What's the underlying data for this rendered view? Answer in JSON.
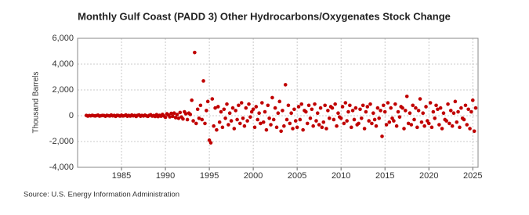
{
  "chart_data": {
    "type": "scatter",
    "title": "Monthly Gulf Coast (PADD 3) Other Hydrocarbons/Oxygenates Stock Change",
    "y_label": "Thousand Barrels",
    "source": "Source: U.S. Energy Information Administration",
    "grid": true,
    "xlim": [
      1980,
      2025.6
    ],
    "xticks": [
      1985,
      1990,
      1995,
      2000,
      2005,
      2010,
      2015,
      2020,
      2025
    ],
    "ylim": [
      -4000,
      6000
    ],
    "yticks": [
      {
        "value": -4000,
        "label": "-4,000"
      },
      {
        "value": -2000,
        "label": "-2,000"
      },
      0,
      {
        "value": 2000,
        "label": "2,000"
      },
      {
        "value": 4000,
        "label": "4,000"
      },
      {
        "value": 6000,
        "label": "6,000"
      }
    ],
    "x": [
      1981,
      1981.17,
      1981.33,
      1981.5,
      1981.67,
      1981.83,
      1982,
      1982.17,
      1982.33,
      1982.5,
      1982.67,
      1982.83,
      1983,
      1983.17,
      1983.33,
      1983.5,
      1983.67,
      1983.83,
      1984,
      1984.17,
      1984.33,
      1984.5,
      1984.67,
      1984.83,
      1985,
      1985.17,
      1985.33,
      1985.5,
      1985.67,
      1985.83,
      1986,
      1986.17,
      1986.33,
      1986.5,
      1986.67,
      1986.83,
      1987,
      1987.17,
      1987.33,
      1987.5,
      1987.67,
      1987.83,
      1988,
      1988.17,
      1988.33,
      1988.5,
      1988.67,
      1988.83,
      1989,
      1989.17,
      1989.33,
      1989.5,
      1989.67,
      1989.83,
      1990,
      1990.17,
      1990.33,
      1990.5,
      1990.67,
      1990.83,
      1991,
      1991.17,
      1991.33,
      1991.5,
      1991.67,
      1991.83,
      1992,
      1992.17,
      1992.33,
      1992.5,
      1992.67,
      1992.83,
      1993,
      1993.17,
      1993.33,
      1993.5,
      1993.67,
      1993.83,
      1994,
      1994.17,
      1994.33,
      1994.5,
      1994.67,
      1994.83,
      1995,
      1995.17,
      1995.33,
      1995.5,
      1995.67,
      1995.83,
      1996,
      1996.17,
      1996.33,
      1996.5,
      1996.67,
      1996.83,
      1997,
      1997.17,
      1997.33,
      1997.5,
      1997.67,
      1997.83,
      1998,
      1998.17,
      1998.33,
      1998.5,
      1998.67,
      1998.83,
      1999,
      1999.17,
      1999.33,
      1999.5,
      1999.67,
      1999.83,
      2000,
      2000.17,
      2000.33,
      2000.5,
      2000.67,
      2000.83,
      2001,
      2001.17,
      2001.33,
      2001.5,
      2001.67,
      2001.83,
      2002,
      2002.17,
      2002.33,
      2002.5,
      2002.67,
      2002.83,
      2003,
      2003.17,
      2003.33,
      2003.5,
      2003.67,
      2003.83,
      2004,
      2004.17,
      2004.33,
      2004.5,
      2004.67,
      2004.83,
      2005,
      2005.17,
      2005.33,
      2005.5,
      2005.67,
      2005.83,
      2006,
      2006.17,
      2006.33,
      2006.5,
      2006.67,
      2006.83,
      2007,
      2007.17,
      2007.33,
      2007.5,
      2007.67,
      2007.83,
      2008,
      2008.17,
      2008.33,
      2008.5,
      2008.67,
      2008.83,
      2009,
      2009.17,
      2009.33,
      2009.5,
      2009.67,
      2009.83,
      2010,
      2010.17,
      2010.33,
      2010.5,
      2010.67,
      2010.83,
      2011,
      2011.17,
      2011.33,
      2011.5,
      2011.67,
      2011.83,
      2012,
      2012.17,
      2012.33,
      2012.5,
      2012.67,
      2012.83,
      2013,
      2013.17,
      2013.33,
      2013.5,
      2013.67,
      2013.83,
      2014,
      2014.17,
      2014.33,
      2014.5,
      2014.67,
      2014.83,
      2015,
      2015.17,
      2015.33,
      2015.5,
      2015.67,
      2015.83,
      2016,
      2016.17,
      2016.33,
      2016.5,
      2016.67,
      2016.83,
      2017,
      2017.17,
      2017.33,
      2017.5,
      2017.67,
      2017.83,
      2018,
      2018.17,
      2018.33,
      2018.5,
      2018.67,
      2018.83,
      2019,
      2019.17,
      2019.33,
      2019.5,
      2019.67,
      2019.83,
      2020,
      2020.17,
      2020.33,
      2020.5,
      2020.67,
      2020.83,
      2021,
      2021.17,
      2021.33,
      2021.5,
      2021.67,
      2021.83,
      2022,
      2022.17,
      2022.33,
      2022.5,
      2022.67,
      2022.83,
      2023,
      2023.17,
      2023.33,
      2023.5,
      2023.67,
      2023.83,
      2024,
      2024.17,
      2024.33,
      2024.5,
      2024.67,
      2024.83,
      2025,
      2025.17,
      2025.33
    ],
    "series": [
      {
        "color": "#c00000",
        "values": [
          20,
          -30,
          10,
          -10,
          30,
          0,
          -20,
          10,
          40,
          -30,
          0,
          20,
          10,
          -40,
          30,
          0,
          -20,
          50,
          -10,
          20,
          -50,
          30,
          10,
          -30,
          40,
          -20,
          0,
          60,
          -40,
          20,
          -30,
          50,
          -10,
          20,
          -60,
          30,
          60,
          -40,
          20,
          -20,
          40,
          -10,
          -50,
          30,
          70,
          -30,
          10,
          -60,
          80,
          -70,
          30,
          -40,
          100,
          -20,
          -120,
          150,
          60,
          -90,
          180,
          -50,
          200,
          -150,
          90,
          -200,
          250,
          -100,
          -250,
          300,
          150,
          -300,
          200,
          100,
          1200,
          -400,
          4900,
          -600,
          500,
          -200,
          800,
          -300,
          2700,
          -600,
          400,
          1100,
          -1900,
          -2100,
          1300,
          -800,
          600,
          -1100,
          700,
          -500,
          300,
          -900,
          500,
          -200,
          900,
          -700,
          200,
          -400,
          600,
          -1000,
          400,
          -300,
          800,
          -600,
          1000,
          -200,
          -800,
          600,
          -400,
          900,
          -100,
          300,
          500,
          -900,
          700,
          -300,
          200,
          -600,
          1000,
          -500,
          300,
          -1100,
          800,
          -200,
          -700,
          1400,
          -300,
          600,
          -900,
          200,
          1100,
          -1200,
          400,
          -800,
          2400,
          -300,
          800,
          -600,
          200,
          -1000,
          500,
          -400,
          -900,
          700,
          -300,
          900,
          -1100,
          400,
          300,
          -600,
          800,
          -200,
          500,
          -800,
          900,
          -400,
          200,
          -700,
          600,
          -900,
          -500,
          800,
          -1000,
          400,
          -200,
          700,
          600,
          -300,
          900,
          -800,
          200,
          -100,
          -200,
          700,
          -600,
          1000,
          -400,
          300,
          800,
          -900,
          400,
          -300,
          600,
          -700,
          -600,
          500,
          -200,
          800,
          -1000,
          300,
          700,
          -400,
          900,
          -600,
          200,
          -300,
          -800,
          600,
          -200,
          400,
          -1600,
          800,
          300,
          -700,
          1000,
          -500,
          600,
          -200,
          -400,
          900,
          -800,
          300,
          -100,
          700,
          600,
          -1000,
          400,
          1500,
          -600,
          200,
          -700,
          800,
          -300,
          600,
          -900,
          400,
          1300,
          -500,
          200,
          -800,
          700,
          -400,
          -600,
          1000,
          -900,
          300,
          -200,
          800,
          500,
          -700,
          600,
          -1000,
          200,
          -300,
          -400,
          900,
          -600,
          400,
          -800,
          200,
          1100,
          -500,
          300,
          -900,
          600,
          -200,
          -300,
          800,
          -700,
          500,
          -1000,
          300,
          1200,
          -1200,
          600
        ]
      }
    ]
  }
}
